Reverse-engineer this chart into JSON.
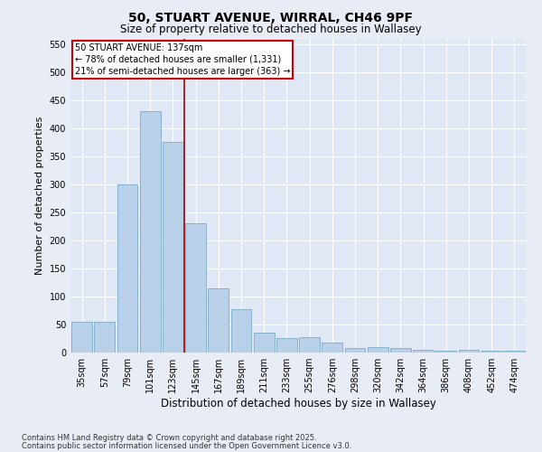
{
  "title1": "50, STUART AVENUE, WIRRAL, CH46 9PF",
  "title2": "Size of property relative to detached houses in Wallasey",
  "xlabel": "Distribution of detached houses by size in Wallasey",
  "ylabel": "Number of detached properties",
  "footnote1": "Contains HM Land Registry data © Crown copyright and database right 2025.",
  "footnote2": "Contains public sector information licensed under the Open Government Licence v3.0.",
  "categories": [
    "35sqm",
    "57sqm",
    "79sqm",
    "101sqm",
    "123sqm",
    "145sqm",
    "167sqm",
    "189sqm",
    "211sqm",
    "233sqm",
    "255sqm",
    "276sqm",
    "298sqm",
    "320sqm",
    "342sqm",
    "364sqm",
    "386sqm",
    "408sqm",
    "452sqm",
    "474sqm"
  ],
  "values": [
    55,
    55,
    300,
    430,
    375,
    230,
    115,
    78,
    35,
    25,
    27,
    17,
    8,
    10,
    8,
    5,
    3,
    5,
    3,
    3
  ],
  "bar_color": "#b8d0e8",
  "bar_edge_color": "#7aaac8",
  "vline_index": 4.5,
  "vline_color": "#aa0000",
  "annotation_title": "50 STUART AVENUE: 137sqm",
  "annotation_line1": "← 78% of detached houses are smaller (1,331)",
  "annotation_line2": "21% of semi-detached houses are larger (363) →",
  "annotation_box_color": "#cc0000",
  "ylim": [
    0,
    560
  ],
  "yticks": [
    0,
    50,
    100,
    150,
    200,
    250,
    300,
    350,
    400,
    450,
    500,
    550
  ],
  "background_color": "#e8ecf5",
  "plot_bg_color": "#e0e8f5",
  "grid_color": "#ffffff",
  "title_fontsize": 10,
  "subtitle_fontsize": 8.5,
  "tick_fontsize": 7,
  "ylabel_fontsize": 8,
  "xlabel_fontsize": 8.5,
  "footnote_fontsize": 6
}
